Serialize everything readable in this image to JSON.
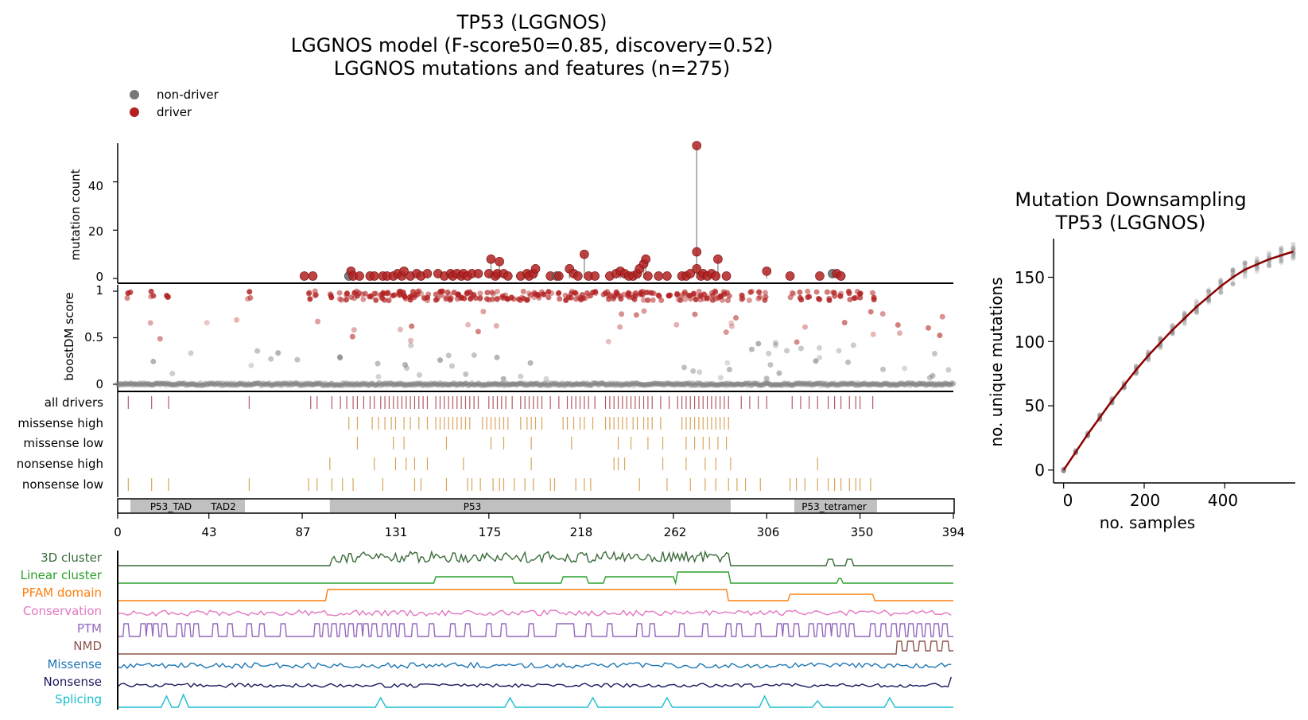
{
  "colors": {
    "driver": "#b22222",
    "non_driver": "#666666",
    "stem": "#999999",
    "all_drivers": "#b35a64",
    "subtrack": "#d9a45b",
    "domain_fill": "#c0c0c0",
    "curve": "#8b0000"
  },
  "chart_data": [
    {
      "type": "scatter",
      "title_lines": [
        "TP53 (LGGNOS)",
        "LGGNOS model (F-score50=0.85, discovery=0.52)",
        "LGGNOS mutations and features (n=275)"
      ],
      "legend": [
        {
          "label": "non-driver",
          "color": "#777777"
        },
        {
          "label": "driver",
          "color": "#b22222"
        }
      ],
      "legend_placement": "top-left",
      "xlim": [
        0,
        394
      ],
      "xticks": [
        "0",
        "43",
        "87",
        "131",
        "175",
        "218",
        "262",
        "306",
        "350",
        "394"
      ],
      "xtick_values": [
        0,
        43,
        87,
        131,
        175,
        218,
        262,
        306,
        350,
        394
      ],
      "mutation_panel": {
        "ylabel": "mutation count",
        "ylim": [
          0,
          56
        ],
        "yticks": [
          "0",
          "20",
          "40"
        ],
        "ytick_values": [
          0,
          20,
          40
        ],
        "points": [
          [
            88,
            1,
            1
          ],
          [
            92,
            1,
            1
          ],
          [
            109,
            1,
            0
          ],
          [
            110,
            3,
            1
          ],
          [
            111,
            1,
            1
          ],
          [
            114,
            1,
            1
          ],
          [
            119,
            1,
            1
          ],
          [
            121,
            1,
            1
          ],
          [
            125,
            1,
            1
          ],
          [
            127,
            1,
            1
          ],
          [
            130,
            1,
            1
          ],
          [
            132,
            2,
            1
          ],
          [
            134,
            1,
            1
          ],
          [
            135,
            3,
            1
          ],
          [
            138,
            1,
            1
          ],
          [
            141,
            2,
            1
          ],
          [
            143,
            1,
            1
          ],
          [
            146,
            2,
            1
          ],
          [
            151,
            2,
            1
          ],
          [
            154,
            1,
            1
          ],
          [
            157,
            2,
            1
          ],
          [
            158,
            1,
            1
          ],
          [
            160,
            2,
            1
          ],
          [
            162,
            1,
            1
          ],
          [
            163,
            2,
            1
          ],
          [
            165,
            1,
            1
          ],
          [
            167,
            2,
            1
          ],
          [
            170,
            2,
            1
          ],
          [
            175,
            2,
            1
          ],
          [
            176,
            8,
            1
          ],
          [
            178,
            1,
            1
          ],
          [
            179,
            2,
            1
          ],
          [
            180,
            7,
            1
          ],
          [
            182,
            2,
            1
          ],
          [
            184,
            1,
            1
          ],
          [
            190,
            1,
            1
          ],
          [
            193,
            2,
            1
          ],
          [
            194,
            1,
            1
          ],
          [
            196,
            2,
            1
          ],
          [
            197,
            4,
            1
          ],
          [
            204,
            1,
            1
          ],
          [
            207,
            1,
            0
          ],
          [
            208,
            1,
            1
          ],
          [
            213,
            4,
            1
          ],
          [
            215,
            2,
            1
          ],
          [
            217,
            1,
            1
          ],
          [
            220,
            10,
            1
          ],
          [
            222,
            1,
            1
          ],
          [
            225,
            1,
            1
          ],
          [
            232,
            1,
            1
          ],
          [
            235,
            2,
            1
          ],
          [
            237,
            3,
            1
          ],
          [
            239,
            2,
            1
          ],
          [
            241,
            1,
            1
          ],
          [
            243,
            1,
            1
          ],
          [
            245,
            2,
            1
          ],
          [
            246,
            4,
            1
          ],
          [
            248,
            6,
            1
          ],
          [
            249,
            8,
            1
          ],
          [
            250,
            1,
            1
          ],
          [
            255,
            1,
            1
          ],
          [
            259,
            1,
            1
          ],
          [
            266,
            1,
            1
          ],
          [
            268,
            1,
            1
          ],
          [
            270,
            2,
            1
          ],
          [
            273,
            55,
            1
          ],
          [
            273,
            11,
            1
          ],
          [
            273,
            4,
            1
          ],
          [
            275,
            1,
            1
          ],
          [
            276,
            2,
            1
          ],
          [
            278,
            1,
            1
          ],
          [
            280,
            2,
            1
          ],
          [
            282,
            1,
            1
          ],
          [
            283,
            8,
            1
          ],
          [
            287,
            1,
            1
          ],
          [
            306,
            3,
            1
          ],
          [
            317,
            1,
            1
          ],
          [
            331,
            1,
            1
          ],
          [
            337,
            2,
            0
          ],
          [
            339,
            2,
            1
          ],
          [
            341,
            1,
            1
          ]
        ]
      },
      "score_panel": {
        "ylabel": "boostDM score",
        "ylim": [
          0,
          1
        ],
        "yticks": [
          "0",
          "0.5",
          "1"
        ],
        "ytick_values": [
          0,
          0.5,
          1
        ]
      },
      "tracks": [
        {
          "label": "all drivers",
          "color": "#b35a64",
          "positions": [
            5,
            16,
            24,
            62,
            91,
            94,
            101,
            105,
            108,
            111,
            113,
            116,
            119,
            121,
            124,
            126,
            128,
            130,
            132,
            134,
            136,
            138,
            140,
            142,
            144,
            146,
            150,
            152,
            154,
            156,
            158,
            160,
            162,
            164,
            166,
            168,
            170,
            175,
            177,
            179,
            181,
            183,
            186,
            190,
            192,
            194,
            196,
            198,
            200,
            204,
            208,
            212,
            214,
            216,
            218,
            220,
            222,
            225,
            230,
            232,
            234,
            236,
            238,
            240,
            242,
            244,
            246,
            248,
            250,
            252,
            256,
            260,
            264,
            266,
            268,
            270,
            272,
            274,
            276,
            278,
            280,
            282,
            284,
            286,
            288,
            294,
            298,
            302,
            306,
            318,
            322,
            326,
            330,
            335,
            338,
            341,
            345,
            348,
            350,
            356
          ]
        },
        {
          "label": "missense high",
          "color": "#d9a45b",
          "positions": [
            109,
            113,
            120,
            123,
            126,
            129,
            131,
            135,
            138,
            142,
            146,
            150,
            152,
            154,
            156,
            158,
            160,
            162,
            164,
            166,
            172,
            174,
            176,
            178,
            180,
            182,
            184,
            190,
            193,
            195,
            197,
            200,
            210,
            212,
            215,
            218,
            220,
            224,
            230,
            232,
            234,
            236,
            238,
            240,
            243,
            245,
            248,
            250,
            252,
            256,
            266,
            268,
            270,
            272,
            274,
            276,
            278,
            280,
            282,
            284,
            286,
            288
          ]
        },
        {
          "label": "missense low",
          "color": "#d9a45b",
          "positions": [
            113,
            130,
            135,
            155,
            176,
            182,
            195,
            214,
            236,
            242,
            250,
            257,
            268,
            272,
            276,
            279,
            283,
            287
          ]
        },
        {
          "label": "nonsense high",
          "color": "#d9a45b",
          "positions": [
            100,
            121,
            131,
            136,
            140,
            146,
            163,
            195,
            234,
            236,
            239,
            257,
            268,
            277,
            282,
            289,
            330
          ]
        },
        {
          "label": "nonsense low",
          "color": "#d9a45b",
          "positions": [
            5,
            16,
            24,
            62,
            90,
            94,
            101,
            106,
            111,
            125,
            140,
            143,
            155,
            165,
            167,
            171,
            177,
            180,
            182,
            187,
            192,
            196,
            204,
            206,
            216,
            220,
            223,
            246,
            259,
            270,
            277,
            282,
            288,
            292,
            296,
            303,
            317,
            320,
            324,
            330,
            335,
            338,
            341,
            345,
            348,
            350,
            355
          ]
        }
      ],
      "domains": [
        {
          "name": "P53_TAD",
          "start": 6,
          "end": 36
        },
        {
          "name": "TAD2",
          "start": 35,
          "end": 60
        },
        {
          "name": "P53",
          "start": 100,
          "end": 289
        },
        {
          "name": "P53_tetramer",
          "start": 319,
          "end": 358
        }
      ],
      "features": [
        {
          "label": "3D cluster",
          "color": "#3a6b3a"
        },
        {
          "label": "Linear cluster",
          "color": "#2ca02c"
        },
        {
          "label": "PFAM domain",
          "color": "#ff7f0e"
        },
        {
          "label": "Conservation",
          "color": "#e377c2"
        },
        {
          "label": "PTM",
          "color": "#9467bd"
        },
        {
          "label": "NMD",
          "color": "#8c564b"
        },
        {
          "label": "Missense",
          "color": "#1f77b4"
        },
        {
          "label": "Nonsense",
          "color": "#1a1a5e"
        },
        {
          "label": "Splicing",
          "color": "#17becf"
        }
      ]
    },
    {
      "type": "line",
      "title_lines": [
        "Mutation Downsampling",
        "TP53 (LGGNOS)"
      ],
      "xlabel": "no. samples",
      "ylabel": "no. unique mutations",
      "xlim": [
        -25,
        575
      ],
      "ylim": [
        -10,
        180
      ],
      "xticks": [
        "0",
        "200",
        "400"
      ],
      "xtick_values": [
        0,
        200,
        400
      ],
      "yticks": [
        "0",
        "50",
        "100",
        "150"
      ],
      "ytick_values": [
        0,
        50,
        100,
        150
      ],
      "curve_color": "#8b0000",
      "curve": [
        [
          0,
          0
        ],
        [
          30,
          14
        ],
        [
          60,
          28
        ],
        [
          90,
          41
        ],
        [
          120,
          54
        ],
        [
          150,
          66
        ],
        [
          180,
          78
        ],
        [
          210,
          89
        ],
        [
          240,
          99
        ],
        [
          270,
          109
        ],
        [
          300,
          118
        ],
        [
          330,
          127
        ],
        [
          360,
          135
        ],
        [
          390,
          143
        ],
        [
          420,
          150
        ],
        [
          450,
          156
        ],
        [
          480,
          160
        ],
        [
          510,
          164
        ],
        [
          540,
          167
        ],
        [
          570,
          170
        ]
      ],
      "samples_x": [
        0,
        30,
        60,
        90,
        120,
        150,
        180,
        210,
        240,
        270,
        300,
        330,
        360,
        390,
        420,
        450,
        480,
        510,
        540,
        570
      ]
    }
  ]
}
